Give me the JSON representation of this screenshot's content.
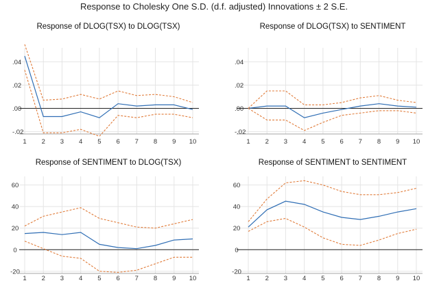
{
  "title": "Response to Cholesky One S.D. (d.f. adjusted) Innovations ± 2 S.E.",
  "colors": {
    "response": "#2e6db4",
    "band": "#e07b39",
    "grid": "#e4e4e4",
    "axis": "#222222"
  },
  "chart_data": [
    {
      "type": "line",
      "title": "Response of DLOG(TSX) to DLOG(TSX)",
      "x": [
        1,
        2,
        3,
        4,
        5,
        6,
        7,
        8,
        9,
        10
      ],
      "x_ticks": [
        "1",
        "2",
        "3",
        "4",
        "5",
        "6",
        "7",
        "8",
        "9",
        "10"
      ],
      "y_ticks": [
        ".04",
        ".02",
        ".00",
        "-.02"
      ],
      "y_tick_values": [
        0.04,
        0.02,
        0.0,
        -0.02
      ],
      "ylim": [
        -0.022,
        0.052
      ],
      "series": [
        {
          "role": "response",
          "values": [
            0.045,
            -0.007,
            -0.007,
            -0.003,
            -0.008,
            0.004,
            0.002,
            0.003,
            0.003,
            -0.001
          ]
        },
        {
          "role": "upper",
          "values": [
            0.055,
            0.007,
            0.008,
            0.012,
            0.008,
            0.015,
            0.011,
            0.012,
            0.01,
            0.005
          ]
        },
        {
          "role": "lower",
          "values": [
            0.033,
            -0.021,
            -0.021,
            -0.018,
            -0.024,
            -0.006,
            -0.008,
            -0.005,
            -0.005,
            -0.008
          ]
        }
      ]
    },
    {
      "type": "line",
      "title": "Response of DLOG(TSX) to SENTIMENT",
      "x": [
        1,
        2,
        3,
        4,
        5,
        6,
        7,
        8,
        9,
        10
      ],
      "x_ticks": [
        "1",
        "2",
        "3",
        "4",
        "5",
        "6",
        "7",
        "8",
        "9",
        "10"
      ],
      "y_ticks": [
        ".04",
        ".02",
        ".00",
        "-.02"
      ],
      "y_tick_values": [
        0.04,
        0.02,
        0.0,
        -0.02
      ],
      "ylim": [
        -0.022,
        0.052
      ],
      "series": [
        {
          "role": "response",
          "values": [
            0.0,
            0.002,
            0.002,
            -0.008,
            -0.004,
            -0.001,
            0.002,
            0.004,
            0.002,
            0.001
          ]
        },
        {
          "role": "upper",
          "values": [
            0.0,
            0.015,
            0.015,
            0.003,
            0.003,
            0.005,
            0.009,
            0.011,
            0.007,
            0.005
          ]
        },
        {
          "role": "lower",
          "values": [
            0.0,
            -0.01,
            -0.01,
            -0.019,
            -0.012,
            -0.006,
            -0.004,
            -0.002,
            -0.002,
            -0.004
          ]
        }
      ]
    },
    {
      "type": "line",
      "title": "Response of SENTIMENT to DLOG(TSX)",
      "x": [
        1,
        2,
        3,
        4,
        5,
        6,
        7,
        8,
        9,
        10
      ],
      "x_ticks": [
        "1",
        "2",
        "3",
        "4",
        "5",
        "6",
        "7",
        "8",
        "9",
        "10"
      ],
      "y_ticks": [
        "60",
        "40",
        "20",
        "0",
        "-20"
      ],
      "y_tick_values": [
        60,
        40,
        20,
        0,
        -20
      ],
      "ylim": [
        -22,
        68
      ],
      "series": [
        {
          "role": "response",
          "values": [
            15,
            16,
            14,
            16,
            5,
            2,
            1,
            4,
            9,
            10
          ]
        },
        {
          "role": "upper",
          "values": [
            22,
            31,
            35,
            39,
            29,
            25,
            21,
            20,
            24,
            28
          ]
        },
        {
          "role": "lower",
          "values": [
            8,
            1,
            -6,
            -8,
            -20,
            -21,
            -19,
            -13,
            -7,
            -7
          ]
        }
      ]
    },
    {
      "type": "line",
      "title": "Response of SENTIMENT to SENTIMENT",
      "x": [
        1,
        2,
        3,
        4,
        5,
        6,
        7,
        8,
        9,
        10
      ],
      "x_ticks": [
        "1",
        "2",
        "3",
        "4",
        "5",
        "6",
        "7",
        "8",
        "9",
        "10"
      ],
      "y_ticks": [
        "60",
        "40",
        "20",
        "0",
        "-20"
      ],
      "y_tick_values": [
        60,
        40,
        20,
        0,
        -20
      ],
      "ylim": [
        -22,
        68
      ],
      "series": [
        {
          "role": "response",
          "values": [
            21,
            37,
            45,
            42,
            35,
            30,
            28,
            31,
            35,
            38
          ]
        },
        {
          "role": "upper",
          "values": [
            26,
            47,
            62,
            64,
            60,
            54,
            51,
            51,
            53,
            57
          ]
        },
        {
          "role": "lower",
          "values": [
            17,
            26,
            29,
            21,
            11,
            5,
            4,
            9,
            15,
            19
          ]
        }
      ]
    }
  ]
}
